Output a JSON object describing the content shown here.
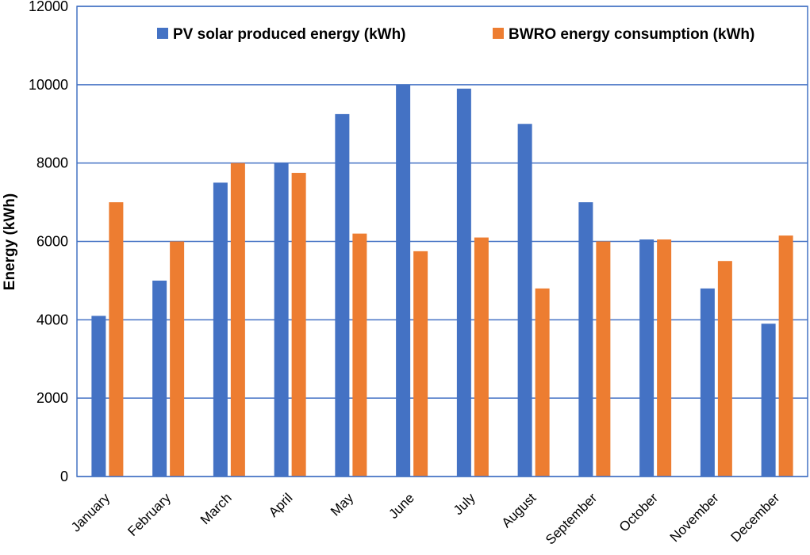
{
  "chart_data": {
    "type": "bar",
    "title": "",
    "xlabel": "",
    "ylabel": "Energy (kWh)",
    "ylim": [
      0,
      12000
    ],
    "yticks": [
      0,
      2000,
      4000,
      6000,
      8000,
      10000,
      12000
    ],
    "grid": true,
    "legend_placement": "top",
    "categories": [
      "January",
      "February",
      "March",
      "April",
      "May",
      "June",
      "July",
      "August",
      "September",
      "October",
      "November",
      "December"
    ],
    "series": [
      {
        "name": "PV solar produced energy (kWh)",
        "color": "#4472c4",
        "values": [
          4100,
          5000,
          7500,
          8000,
          9250,
          10000,
          9900,
          9000,
          7000,
          6050,
          4800,
          3900
        ]
      },
      {
        "name": "BWRO energy consumption (kWh)",
        "color": "#ed7d31",
        "values": [
          7000,
          6000,
          8000,
          7750,
          6200,
          5750,
          6100,
          4800,
          6000,
          6050,
          5500,
          6150
        ]
      }
    ]
  }
}
